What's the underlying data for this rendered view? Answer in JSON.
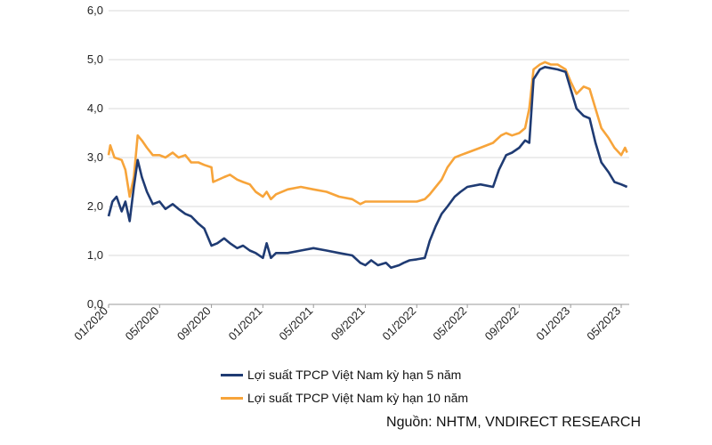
{
  "chart_data": {
    "type": "line",
    "ylim": [
      0,
      6
    ],
    "yticks": [
      "0,0",
      "1,0",
      "2,0",
      "3,0",
      "4,0",
      "5,0",
      "6,0"
    ],
    "xticks": [
      "01/2020",
      "05/2020",
      "09/2020",
      "01/2021",
      "05/2021",
      "09/2021",
      "01/2022",
      "05/2022",
      "09/2022",
      "01/2023",
      "05/2023"
    ],
    "grid": "horizontal",
    "legend_position": "bottom",
    "colors": {
      "5y": "#1f3b73",
      "10y": "#f7a43a"
    },
    "series": [
      {
        "name": "Lợi suất TPCP Việt Nam kỳ hạn 5 năm",
        "key": "5y",
        "points": [
          [
            "2020-01-01",
            1.8
          ],
          [
            "2020-01-10",
            2.1
          ],
          [
            "2020-01-20",
            2.2
          ],
          [
            "2020-02-01",
            1.9
          ],
          [
            "2020-02-10",
            2.1
          ],
          [
            "2020-02-20",
            1.7
          ],
          [
            "2020-03-01",
            2.4
          ],
          [
            "2020-03-10",
            2.95
          ],
          [
            "2020-03-20",
            2.6
          ],
          [
            "2020-04-01",
            2.3
          ],
          [
            "2020-04-15",
            2.05
          ],
          [
            "2020-05-01",
            2.1
          ],
          [
            "2020-05-15",
            1.95
          ],
          [
            "2020-06-01",
            2.05
          ],
          [
            "2020-06-15",
            1.95
          ],
          [
            "2020-07-01",
            1.85
          ],
          [
            "2020-07-15",
            1.8
          ],
          [
            "2020-08-01",
            1.65
          ],
          [
            "2020-08-15",
            1.55
          ],
          [
            "2020-09-01",
            1.2
          ],
          [
            "2020-09-15",
            1.25
          ],
          [
            "2020-10-01",
            1.35
          ],
          [
            "2020-10-15",
            1.25
          ],
          [
            "2020-11-01",
            1.15
          ],
          [
            "2020-11-15",
            1.2
          ],
          [
            "2020-12-01",
            1.1
          ],
          [
            "2020-12-15",
            1.05
          ],
          [
            "2021-01-01",
            0.95
          ],
          [
            "2021-01-10",
            1.25
          ],
          [
            "2021-01-20",
            0.95
          ],
          [
            "2021-02-01",
            1.05
          ],
          [
            "2021-03-01",
            1.05
          ],
          [
            "2021-04-01",
            1.1
          ],
          [
            "2021-05-01",
            1.15
          ],
          [
            "2021-06-01",
            1.1
          ],
          [
            "2021-07-01",
            1.05
          ],
          [
            "2021-08-01",
            1.0
          ],
          [
            "2021-08-20",
            0.85
          ],
          [
            "2021-09-01",
            0.8
          ],
          [
            "2021-09-15",
            0.9
          ],
          [
            "2021-10-01",
            0.8
          ],
          [
            "2021-10-20",
            0.85
          ],
          [
            "2021-11-01",
            0.75
          ],
          [
            "2021-11-20",
            0.8
          ],
          [
            "2021-12-01",
            0.85
          ],
          [
            "2021-12-15",
            0.9
          ],
          [
            "2022-01-01",
            0.92
          ],
          [
            "2022-01-20",
            0.95
          ],
          [
            "2022-02-01",
            1.3
          ],
          [
            "2022-02-15",
            1.6
          ],
          [
            "2022-03-01",
            1.85
          ],
          [
            "2022-03-15",
            2.0
          ],
          [
            "2022-04-01",
            2.2
          ],
          [
            "2022-04-15",
            2.3
          ],
          [
            "2022-05-01",
            2.4
          ],
          [
            "2022-06-01",
            2.45
          ],
          [
            "2022-07-01",
            2.4
          ],
          [
            "2022-07-15",
            2.75
          ],
          [
            "2022-08-01",
            3.05
          ],
          [
            "2022-08-15",
            3.1
          ],
          [
            "2022-09-01",
            3.2
          ],
          [
            "2022-09-15",
            3.35
          ],
          [
            "2022-09-25",
            3.3
          ],
          [
            "2022-10-05",
            4.6
          ],
          [
            "2022-10-20",
            4.8
          ],
          [
            "2022-11-01",
            4.85
          ],
          [
            "2022-12-01",
            4.8
          ],
          [
            "2022-12-20",
            4.75
          ],
          [
            "2023-01-01",
            4.4
          ],
          [
            "2023-01-15",
            4.0
          ],
          [
            "2023-02-01",
            3.85
          ],
          [
            "2023-02-15",
            3.8
          ],
          [
            "2023-03-01",
            3.3
          ],
          [
            "2023-03-15",
            2.9
          ],
          [
            "2023-04-01",
            2.7
          ],
          [
            "2023-04-15",
            2.5
          ],
          [
            "2023-05-01",
            2.45
          ],
          [
            "2023-05-15",
            2.4
          ]
        ]
      },
      {
        "name": "Lợi suất TPCP Việt Nam kỳ hạn 10 năm",
        "key": "10y",
        "points": [
          [
            "2020-01-01",
            3.05
          ],
          [
            "2020-01-05",
            3.25
          ],
          [
            "2020-01-15",
            3.0
          ],
          [
            "2020-02-01",
            2.95
          ],
          [
            "2020-02-10",
            2.75
          ],
          [
            "2020-02-20",
            2.2
          ],
          [
            "2020-03-01",
            2.6
          ],
          [
            "2020-03-10",
            3.45
          ],
          [
            "2020-03-20",
            3.35
          ],
          [
            "2020-04-01",
            3.2
          ],
          [
            "2020-04-15",
            3.05
          ],
          [
            "2020-05-01",
            3.05
          ],
          [
            "2020-05-15",
            3.0
          ],
          [
            "2020-06-01",
            3.1
          ],
          [
            "2020-06-15",
            3.0
          ],
          [
            "2020-07-01",
            3.05
          ],
          [
            "2020-07-15",
            2.9
          ],
          [
            "2020-08-01",
            2.9
          ],
          [
            "2020-08-15",
            2.85
          ],
          [
            "2020-09-01",
            2.8
          ],
          [
            "2020-09-05",
            2.5
          ],
          [
            "2020-10-01",
            2.6
          ],
          [
            "2020-10-15",
            2.65
          ],
          [
            "2020-11-01",
            2.55
          ],
          [
            "2020-11-15",
            2.5
          ],
          [
            "2020-12-01",
            2.45
          ],
          [
            "2020-12-15",
            2.3
          ],
          [
            "2021-01-01",
            2.2
          ],
          [
            "2021-01-10",
            2.3
          ],
          [
            "2021-01-20",
            2.15
          ],
          [
            "2021-02-01",
            2.25
          ],
          [
            "2021-03-01",
            2.35
          ],
          [
            "2021-04-01",
            2.4
          ],
          [
            "2021-05-01",
            2.35
          ],
          [
            "2021-06-01",
            2.3
          ],
          [
            "2021-07-01",
            2.2
          ],
          [
            "2021-08-01",
            2.15
          ],
          [
            "2021-08-20",
            2.05
          ],
          [
            "2021-09-01",
            2.1
          ],
          [
            "2021-10-01",
            2.1
          ],
          [
            "2021-11-01",
            2.1
          ],
          [
            "2021-12-01",
            2.1
          ],
          [
            "2022-01-01",
            2.1
          ],
          [
            "2022-01-20",
            2.15
          ],
          [
            "2022-02-01",
            2.25
          ],
          [
            "2022-02-15",
            2.4
          ],
          [
            "2022-03-01",
            2.55
          ],
          [
            "2022-03-15",
            2.8
          ],
          [
            "2022-04-01",
            3.0
          ],
          [
            "2022-04-15",
            3.05
          ],
          [
            "2022-05-01",
            3.1
          ],
          [
            "2022-06-01",
            3.2
          ],
          [
            "2022-07-01",
            3.3
          ],
          [
            "2022-07-20",
            3.45
          ],
          [
            "2022-08-01",
            3.5
          ],
          [
            "2022-08-15",
            3.45
          ],
          [
            "2022-09-01",
            3.5
          ],
          [
            "2022-09-15",
            3.6
          ],
          [
            "2022-09-25",
            4.0
          ],
          [
            "2022-10-05",
            4.8
          ],
          [
            "2022-10-20",
            4.9
          ],
          [
            "2022-11-01",
            4.95
          ],
          [
            "2022-11-15",
            4.9
          ],
          [
            "2022-12-01",
            4.9
          ],
          [
            "2022-12-20",
            4.8
          ],
          [
            "2023-01-01",
            4.55
          ],
          [
            "2023-01-15",
            4.3
          ],
          [
            "2023-02-01",
            4.45
          ],
          [
            "2023-02-15",
            4.4
          ],
          [
            "2023-03-01",
            4.0
          ],
          [
            "2023-03-15",
            3.6
          ],
          [
            "2023-04-01",
            3.4
          ],
          [
            "2023-04-15",
            3.2
          ],
          [
            "2023-05-01",
            3.05
          ],
          [
            "2023-05-10",
            3.2
          ],
          [
            "2023-05-15",
            3.1
          ]
        ]
      }
    ]
  },
  "source": "Nguồn: NHTM, VNDIRECT RESEARCH"
}
